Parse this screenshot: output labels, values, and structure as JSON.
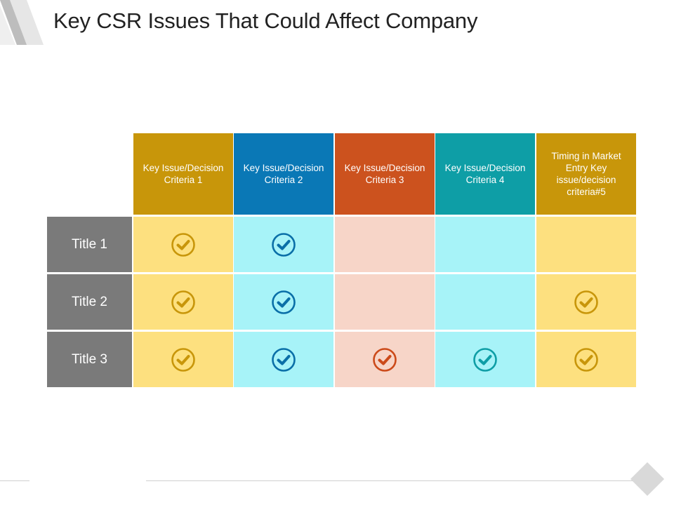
{
  "title": "Key CSR Issues That Could Affect Company",
  "columns": [
    {
      "label": "Key Issue/Decision Criteria 1",
      "header_color": "#c8960a",
      "cell_color": "#fde07f",
      "check_color": "#c8960a"
    },
    {
      "label": "Key Issue/Decision Criteria 2",
      "header_color": "#0a78b6",
      "cell_color": "#a7f3f8",
      "check_color": "#0a6fa8"
    },
    {
      "label": "Key Issue/Decision Criteria 3",
      "header_color": "#cc521e",
      "cell_color": "#f7d5c8",
      "check_color": "#cc4a1a"
    },
    {
      "label": "Key Issue/Decision Criteria 4",
      "header_color": "#0e9ea6",
      "cell_color": "#a7f3f8",
      "check_color": "#0e9ea6"
    },
    {
      "label": "Timing in Market Entry Key issue/decision criteria#5",
      "header_color": "#c8960a",
      "cell_color": "#fde07f",
      "check_color": "#c8960a"
    }
  ],
  "rows": [
    {
      "label": "Title 1",
      "checks": [
        true,
        true,
        false,
        false,
        false
      ]
    },
    {
      "label": "Title 2",
      "checks": [
        true,
        true,
        false,
        false,
        true
      ]
    },
    {
      "label": "Title 3",
      "checks": [
        true,
        true,
        true,
        true,
        true
      ]
    }
  ],
  "icons": {
    "check": "check-circle-icon",
    "corner": "corner-stripe-decoration",
    "footer": "diamond-icon"
  }
}
